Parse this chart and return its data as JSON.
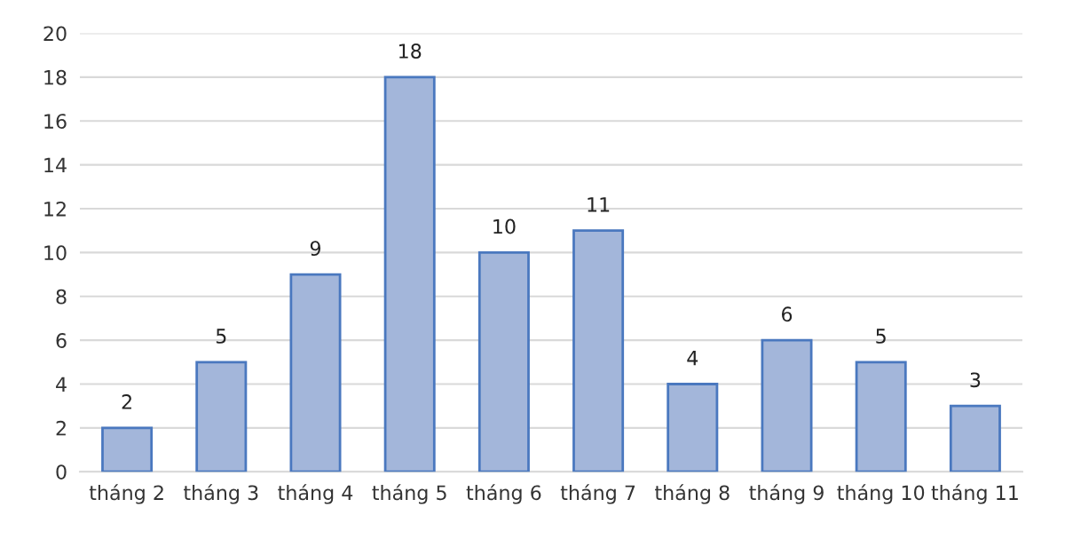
{
  "chart_data": {
    "type": "bar",
    "categories": [
      "tháng 2",
      "tháng 3",
      "tháng 4",
      "tháng 5",
      "tháng 6",
      "tháng 7",
      "tháng 8",
      "tháng 9",
      "tháng 10",
      "tháng 11"
    ],
    "values": [
      2,
      5,
      9,
      18,
      10,
      11,
      4,
      6,
      5,
      3
    ],
    "color": "#a3b6da",
    "ylim": [
      0,
      20
    ],
    "yticks": [
      0,
      2,
      4,
      6,
      8,
      10,
      12,
      14,
      16,
      18,
      20
    ],
    "grid": "y",
    "data_labels": true
  }
}
